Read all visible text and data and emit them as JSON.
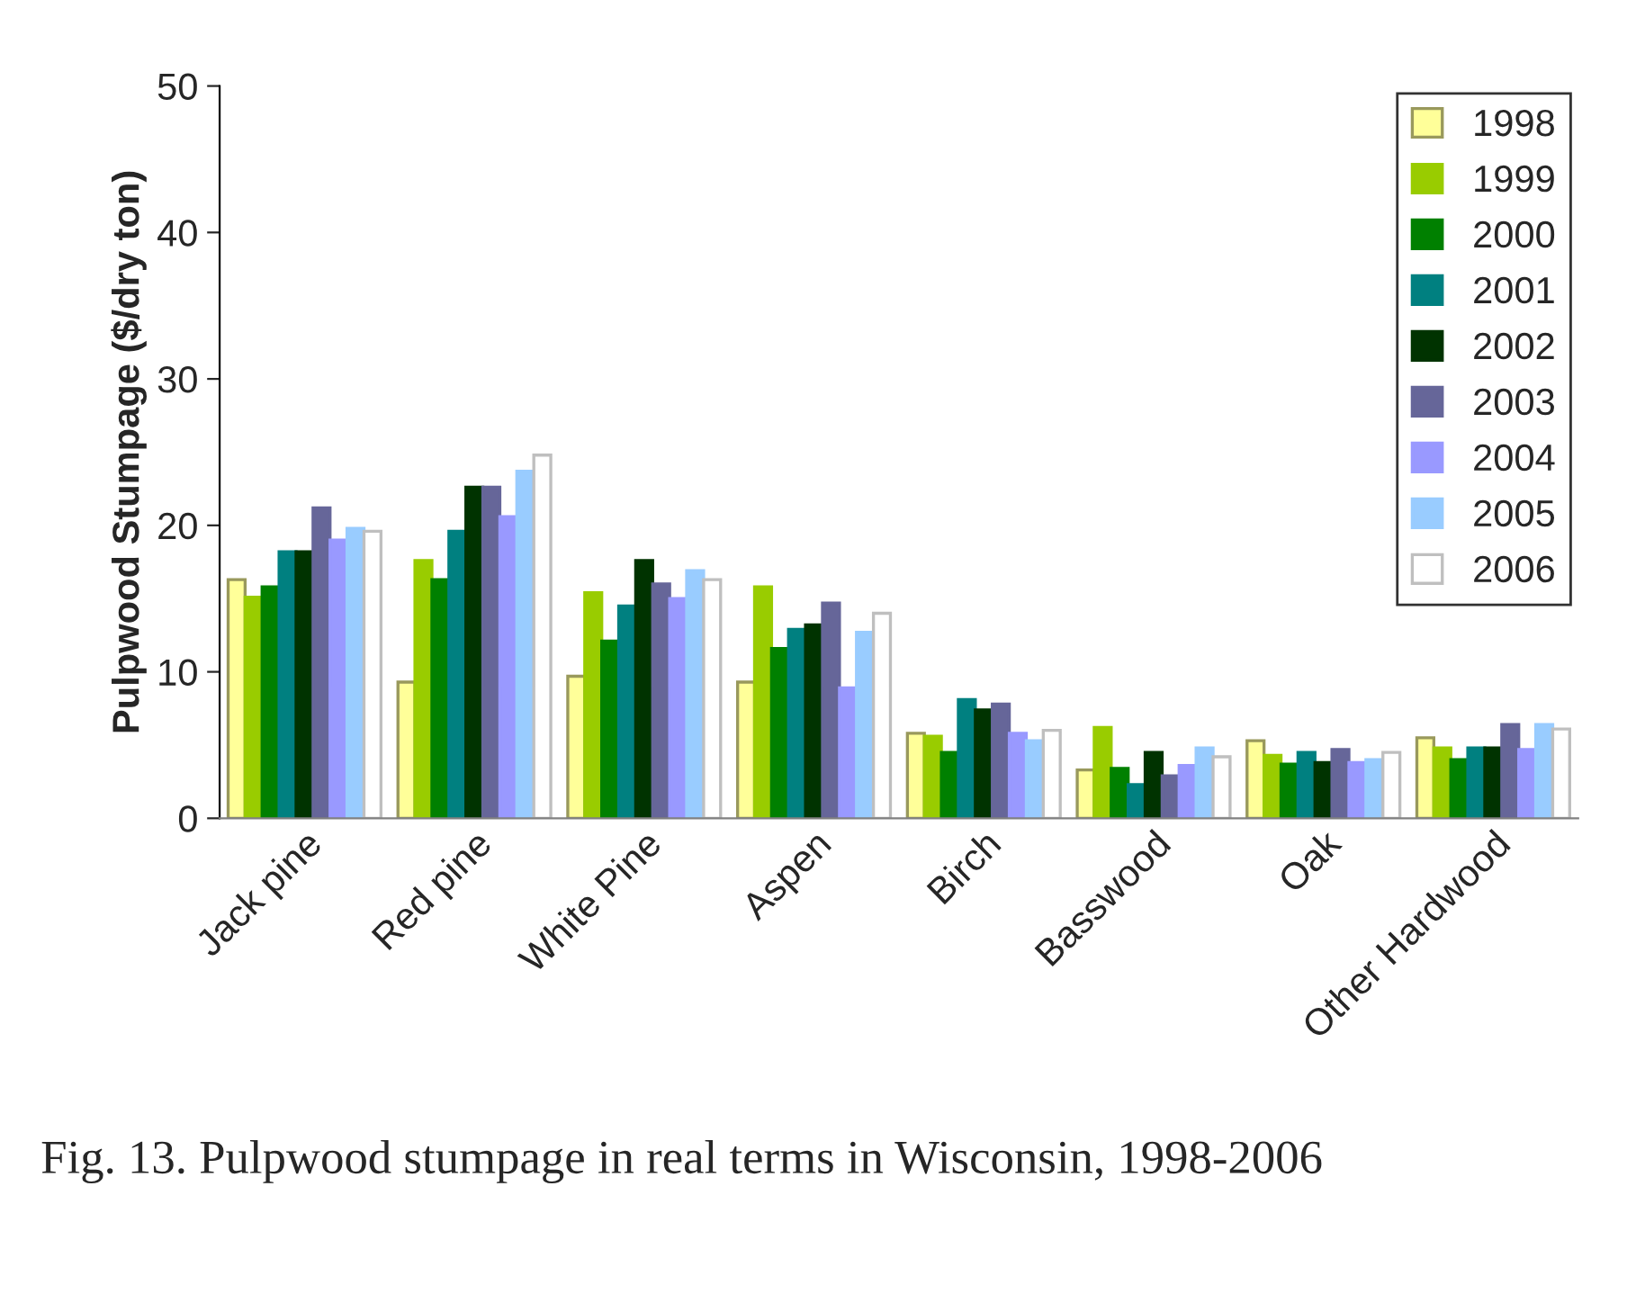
{
  "chart_data": {
    "type": "bar",
    "ylabel": "Pulpwood Stumpage ($/dry ton)",
    "categories": [
      "Jack pine",
      "Red pine",
      "White Pine",
      "Aspen",
      "Birch",
      "Basswood",
      "Oak",
      "Other Hardwood"
    ],
    "series": [
      {
        "name": "1998",
        "color": "#ffff99",
        "values": [
          16.3,
          9.3,
          9.7,
          9.3,
          5.8,
          3.3,
          5.3,
          5.5
        ]
      },
      {
        "name": "1999",
        "color": "#99cc00",
        "values": [
          15.1,
          17.6,
          15.4,
          15.8,
          5.6,
          6.2,
          4.3,
          4.8
        ]
      },
      {
        "name": "2000",
        "color": "#008000",
        "values": [
          15.8,
          16.3,
          12.1,
          11.6,
          4.5,
          3.4,
          3.7,
          4.0
        ]
      },
      {
        "name": "2001",
        "color": "#008080",
        "values": [
          18.2,
          19.6,
          14.5,
          12.9,
          8.1,
          2.3,
          4.5,
          4.8
        ]
      },
      {
        "name": "2002",
        "color": "#003300",
        "values": [
          18.2,
          22.6,
          17.6,
          13.2,
          7.4,
          4.5,
          3.8,
          4.8
        ]
      },
      {
        "name": "2003",
        "color": "#666699",
        "values": [
          21.2,
          22.6,
          16.0,
          14.7,
          7.8,
          2.9,
          4.7,
          6.4
        ]
      },
      {
        "name": "2004",
        "color": "#9999ff",
        "values": [
          19.0,
          20.6,
          15.0,
          8.9,
          5.8,
          3.6,
          3.8,
          4.7
        ]
      },
      {
        "name": "2005",
        "color": "#99ccff",
        "values": [
          19.8,
          23.7,
          16.9,
          12.7,
          5.3,
          4.8,
          4.0,
          6.4
        ]
      },
      {
        "name": "2006",
        "color": "#ffffff",
        "values": [
          19.6,
          24.8,
          16.3,
          14.0,
          6.0,
          4.2,
          4.5,
          6.1
        ]
      }
    ],
    "ylim": [
      0,
      50
    ],
    "yticks": [
      0,
      10,
      20,
      30,
      40,
      50
    ],
    "grid": false,
    "legend": "top right",
    "annotations": [
      "Fig. 13. Pulpwood stumpage in real terms in Wisconsin, 1998-2006"
    ]
  }
}
